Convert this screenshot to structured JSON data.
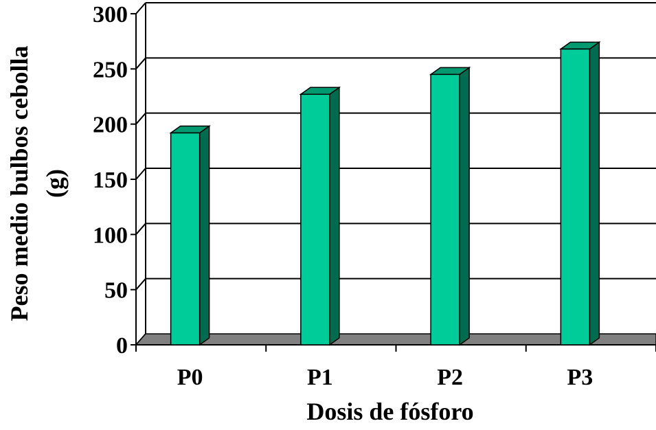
{
  "chart_data": {
    "type": "bar",
    "title": "",
    "xlabel": "Dosis de fósforo",
    "ylabel_line1": "Peso medio bulbos cebolla",
    "ylabel_line2": "(g)",
    "categories": [
      "P0",
      "P1",
      "P2",
      "P3"
    ],
    "values": [
      192,
      227,
      245,
      268
    ],
    "ylim": [
      0,
      300
    ],
    "yticks": [
      "0",
      "50",
      "100",
      "150",
      "200",
      "250",
      "300"
    ],
    "grid": true,
    "style": "3d-column",
    "colors": {
      "bar_front": "#00CC99",
      "bar_top": "#009970",
      "bar_side": "#006B4F",
      "floor": "#808080",
      "grid": "#000000"
    }
  }
}
